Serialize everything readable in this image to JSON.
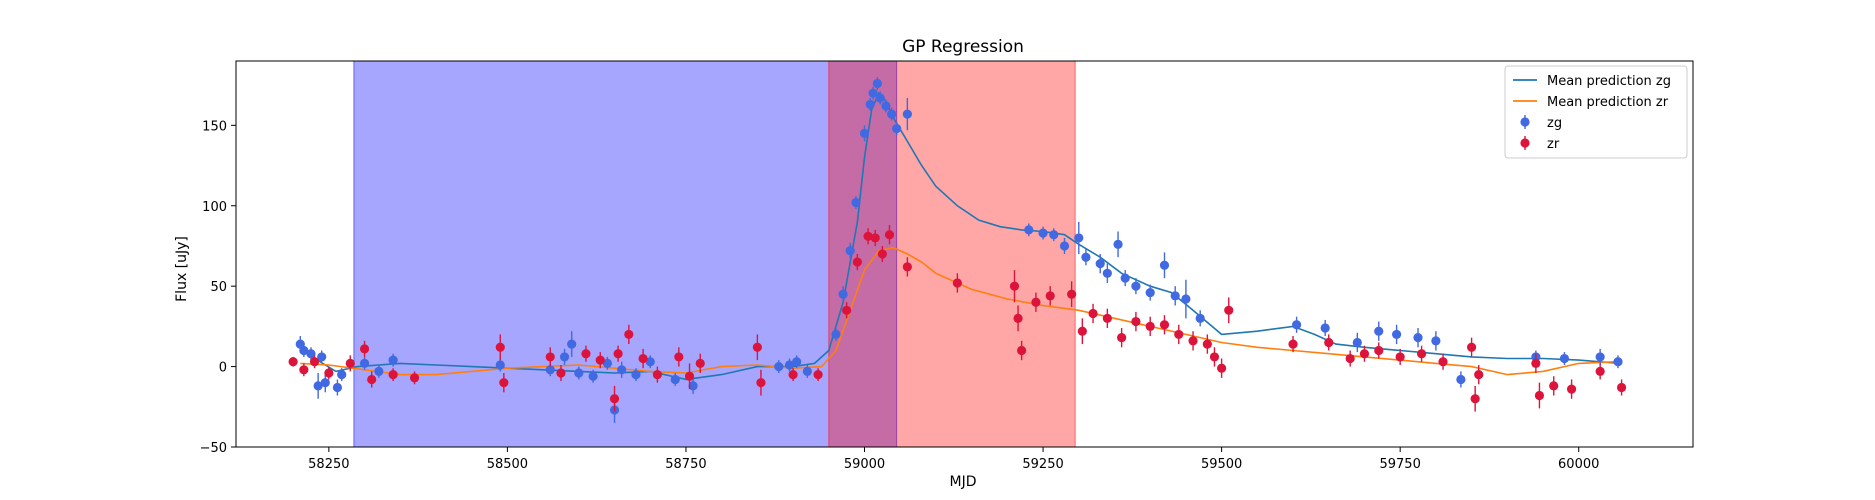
{
  "chart_data": {
    "type": "scatter",
    "title": "GP Regression",
    "xlabel": "MJD",
    "ylabel": "Flux [uJy]",
    "xlim": [
      58120,
      60160
    ],
    "ylim": [
      -50,
      190
    ],
    "xticks": [
      58250,
      58500,
      58750,
      59000,
      59250,
      59500,
      59750,
      60000
    ],
    "yticks": [
      -50,
      0,
      50,
      100,
      150
    ],
    "grid": false,
    "legend_position": "top-right",
    "shaded_regions": [
      {
        "x_start": 58285,
        "x_end": 59045,
        "color": "#0000ff",
        "opacity": 0.35
      },
      {
        "x_start": 58950,
        "x_end": 59295,
        "color": "#ff0000",
        "opacity": 0.35
      }
    ],
    "series": [
      {
        "name": "Mean prediction zg",
        "kind": "line",
        "color": "#1f77b4",
        "x": [
          58210,
          58230,
          58260,
          58290,
          58320,
          58350,
          58400,
          58450,
          58500,
          58550,
          58600,
          58650,
          58700,
          58750,
          58800,
          58850,
          58900,
          58930,
          58950,
          58970,
          58990,
          59000,
          59010,
          59020,
          59030,
          59040,
          59060,
          59080,
          59100,
          59130,
          59160,
          59190,
          59220,
          59250,
          59280,
          59300,
          59330,
          59360,
          59400,
          59430,
          59460,
          59500,
          59550,
          59600,
          59630,
          59660,
          59700,
          59750,
          59800,
          59850,
          59900,
          59950,
          60000,
          60030,
          60060
        ],
        "y": [
          12,
          5,
          -3,
          0,
          1,
          2,
          1,
          0,
          -1,
          -2,
          -3,
          -4,
          -3,
          -8,
          -5,
          0,
          0,
          2,
          10,
          40,
          90,
          130,
          160,
          170,
          165,
          155,
          140,
          125,
          112,
          100,
          91,
          87,
          85,
          84,
          82,
          76,
          68,
          58,
          50,
          46,
          35,
          20,
          22,
          25,
          20,
          14,
          12,
          10,
          8,
          6,
          5,
          5,
          4,
          3,
          2
        ]
      },
      {
        "name": "Mean prediction zr",
        "kind": "line",
        "color": "#ff7f0e",
        "x": [
          58210,
          58250,
          58300,
          58350,
          58400,
          58450,
          58500,
          58550,
          58600,
          58650,
          58700,
          58750,
          58800,
          58850,
          58900,
          58940,
          58960,
          58980,
          59000,
          59020,
          59040,
          59060,
          59080,
          59100,
          59150,
          59200,
          59250,
          59300,
          59350,
          59400,
          59450,
          59500,
          59550,
          59600,
          59650,
          59700,
          59750,
          59800,
          59850,
          59900,
          59950,
          60000,
          60050
        ],
        "y": [
          2,
          1,
          -2,
          -5,
          -5,
          -3,
          -1,
          0,
          1,
          -1,
          -3,
          -4,
          0,
          1,
          -1,
          0,
          10,
          35,
          60,
          72,
          74,
          70,
          65,
          58,
          48,
          42,
          38,
          35,
          30,
          25,
          20,
          15,
          12,
          10,
          8,
          6,
          4,
          2,
          0,
          -5,
          -3,
          2,
          3
        ]
      },
      {
        "name": "zg",
        "kind": "scatter_errorbar",
        "color": "#4169e1",
        "points": [
          {
            "x": 58210,
            "y": 14,
            "err": 5
          },
          {
            "x": 58215,
            "y": 10,
            "err": 4
          },
          {
            "x": 58225,
            "y": 8,
            "err": 4
          },
          {
            "x": 58235,
            "y": -12,
            "err": 8
          },
          {
            "x": 58240,
            "y": 6,
            "err": 4
          },
          {
            "x": 58245,
            "y": -10,
            "err": 6
          },
          {
            "x": 58262,
            "y": -13,
            "err": 5
          },
          {
            "x": 58268,
            "y": -5,
            "err": 4
          },
          {
            "x": 58300,
            "y": 2,
            "err": 4
          },
          {
            "x": 58320,
            "y": -3,
            "err": 4
          },
          {
            "x": 58340,
            "y": 4,
            "err": 4
          },
          {
            "x": 58490,
            "y": 1,
            "err": 4
          },
          {
            "x": 58560,
            "y": -2,
            "err": 4
          },
          {
            "x": 58580,
            "y": 6,
            "err": 5
          },
          {
            "x": 58590,
            "y": 14,
            "err": 8
          },
          {
            "x": 58600,
            "y": -4,
            "err": 4
          },
          {
            "x": 58620,
            "y": -6,
            "err": 4
          },
          {
            "x": 58640,
            "y": 2,
            "err": 4
          },
          {
            "x": 58650,
            "y": -27,
            "err": 8
          },
          {
            "x": 58660,
            "y": -2,
            "err": 5
          },
          {
            "x": 58680,
            "y": -5,
            "err": 4
          },
          {
            "x": 58700,
            "y": 3,
            "err": 4
          },
          {
            "x": 58735,
            "y": -8,
            "err": 4
          },
          {
            "x": 58760,
            "y": -12,
            "err": 5
          },
          {
            "x": 58880,
            "y": 0,
            "err": 4
          },
          {
            "x": 58895,
            "y": 1,
            "err": 4
          },
          {
            "x": 58905,
            "y": 3,
            "err": 4
          },
          {
            "x": 58920,
            "y": -3,
            "err": 4
          },
          {
            "x": 58960,
            "y": 20,
            "err": 4
          },
          {
            "x": 58970,
            "y": 45,
            "err": 5
          },
          {
            "x": 58980,
            "y": 72,
            "err": 5
          },
          {
            "x": 58988,
            "y": 102,
            "err": 4
          },
          {
            "x": 59000,
            "y": 145,
            "err": 5
          },
          {
            "x": 59008,
            "y": 163,
            "err": 4
          },
          {
            "x": 59012,
            "y": 170,
            "err": 4
          },
          {
            "x": 59018,
            "y": 176,
            "err": 4
          },
          {
            "x": 59022,
            "y": 167,
            "err": 4
          },
          {
            "x": 59030,
            "y": 162,
            "err": 4
          },
          {
            "x": 59038,
            "y": 157,
            "err": 4
          },
          {
            "x": 59045,
            "y": 148,
            "err": 4
          },
          {
            "x": 59060,
            "y": 157,
            "err": 10
          },
          {
            "x": 59230,
            "y": 85,
            "err": 4
          },
          {
            "x": 59250,
            "y": 83,
            "err": 4
          },
          {
            "x": 59265,
            "y": 82,
            "err": 4
          },
          {
            "x": 59280,
            "y": 75,
            "err": 5
          },
          {
            "x": 59300,
            "y": 80,
            "err": 10
          },
          {
            "x": 59310,
            "y": 68,
            "err": 5
          },
          {
            "x": 59330,
            "y": 64,
            "err": 6
          },
          {
            "x": 59340,
            "y": 58,
            "err": 6
          },
          {
            "x": 59355,
            "y": 76,
            "err": 8
          },
          {
            "x": 59365,
            "y": 55,
            "err": 5
          },
          {
            "x": 59380,
            "y": 50,
            "err": 5
          },
          {
            "x": 59400,
            "y": 46,
            "err": 5
          },
          {
            "x": 59420,
            "y": 63,
            "err": 8
          },
          {
            "x": 59435,
            "y": 44,
            "err": 6
          },
          {
            "x": 59450,
            "y": 42,
            "err": 12
          },
          {
            "x": 59470,
            "y": 30,
            "err": 5
          },
          {
            "x": 59605,
            "y": 26,
            "err": 5
          },
          {
            "x": 59645,
            "y": 24,
            "err": 5
          },
          {
            "x": 59690,
            "y": 15,
            "err": 6
          },
          {
            "x": 59720,
            "y": 22,
            "err": 6
          },
          {
            "x": 59745,
            "y": 20,
            "err": 6
          },
          {
            "x": 59775,
            "y": 18,
            "err": 6
          },
          {
            "x": 59800,
            "y": 16,
            "err": 6
          },
          {
            "x": 59835,
            "y": -8,
            "err": 5
          },
          {
            "x": 59940,
            "y": 6,
            "err": 4
          },
          {
            "x": 59980,
            "y": 5,
            "err": 4
          },
          {
            "x": 60030,
            "y": 6,
            "err": 5
          },
          {
            "x": 60055,
            "y": 3,
            "err": 4
          }
        ]
      },
      {
        "name": "zr",
        "kind": "scatter_errorbar",
        "color": "#dc143c",
        "points": [
          {
            "x": 58200,
            "y": 3,
            "err": 3
          },
          {
            "x": 58215,
            "y": -2,
            "err": 4
          },
          {
            "x": 58230,
            "y": 3,
            "err": 4
          },
          {
            "x": 58250,
            "y": -4,
            "err": 4
          },
          {
            "x": 58280,
            "y": 2,
            "err": 5
          },
          {
            "x": 58300,
            "y": 11,
            "err": 5
          },
          {
            "x": 58310,
            "y": -8,
            "err": 5
          },
          {
            "x": 58340,
            "y": -5,
            "err": 4
          },
          {
            "x": 58370,
            "y": -7,
            "err": 4
          },
          {
            "x": 58490,
            "y": 12,
            "err": 8
          },
          {
            "x": 58495,
            "y": -10,
            "err": 6
          },
          {
            "x": 58560,
            "y": 6,
            "err": 6
          },
          {
            "x": 58575,
            "y": -4,
            "err": 5
          },
          {
            "x": 58610,
            "y": 8,
            "err": 5
          },
          {
            "x": 58630,
            "y": 4,
            "err": 5
          },
          {
            "x": 58650,
            "y": -20,
            "err": 8
          },
          {
            "x": 58655,
            "y": 8,
            "err": 5
          },
          {
            "x": 58670,
            "y": 20,
            "err": 6
          },
          {
            "x": 58690,
            "y": 5,
            "err": 6
          },
          {
            "x": 58710,
            "y": -5,
            "err": 5
          },
          {
            "x": 58740,
            "y": 6,
            "err": 6
          },
          {
            "x": 58755,
            "y": -6,
            "err": 8
          },
          {
            "x": 58770,
            "y": 2,
            "err": 6
          },
          {
            "x": 58850,
            "y": 12,
            "err": 8
          },
          {
            "x": 58855,
            "y": -10,
            "err": 8
          },
          {
            "x": 58900,
            "y": -5,
            "err": 4
          },
          {
            "x": 58935,
            "y": -5,
            "err": 4
          },
          {
            "x": 58975,
            "y": 35,
            "err": 5
          },
          {
            "x": 58990,
            "y": 65,
            "err": 5
          },
          {
            "x": 59005,
            "y": 81,
            "err": 5
          },
          {
            "x": 59015,
            "y": 80,
            "err": 5
          },
          {
            "x": 59025,
            "y": 70,
            "err": 5
          },
          {
            "x": 59035,
            "y": 82,
            "err": 6
          },
          {
            "x": 59060,
            "y": 62,
            "err": 6
          },
          {
            "x": 59130,
            "y": 52,
            "err": 6
          },
          {
            "x": 59210,
            "y": 50,
            "err": 10
          },
          {
            "x": 59215,
            "y": 30,
            "err": 8
          },
          {
            "x": 59220,
            "y": 10,
            "err": 6
          },
          {
            "x": 59240,
            "y": 40,
            "err": 6
          },
          {
            "x": 59260,
            "y": 44,
            "err": 6
          },
          {
            "x": 59290,
            "y": 45,
            "err": 8
          },
          {
            "x": 59305,
            "y": 22,
            "err": 8
          },
          {
            "x": 59320,
            "y": 33,
            "err": 6
          },
          {
            "x": 59340,
            "y": 30,
            "err": 6
          },
          {
            "x": 59360,
            "y": 18,
            "err": 6
          },
          {
            "x": 59380,
            "y": 28,
            "err": 6
          },
          {
            "x": 59400,
            "y": 25,
            "err": 6
          },
          {
            "x": 59420,
            "y": 26,
            "err": 6
          },
          {
            "x": 59440,
            "y": 20,
            "err": 6
          },
          {
            "x": 59460,
            "y": 16,
            "err": 6
          },
          {
            "x": 59480,
            "y": 14,
            "err": 6
          },
          {
            "x": 59490,
            "y": 6,
            "err": 6
          },
          {
            "x": 59500,
            "y": -1,
            "err": 6
          },
          {
            "x": 59510,
            "y": 35,
            "err": 8
          },
          {
            "x": 59600,
            "y": 14,
            "err": 5
          },
          {
            "x": 59650,
            "y": 15,
            "err": 5
          },
          {
            "x": 59680,
            "y": 5,
            "err": 5
          },
          {
            "x": 59700,
            "y": 8,
            "err": 5
          },
          {
            "x": 59720,
            "y": 10,
            "err": 5
          },
          {
            "x": 59750,
            "y": 6,
            "err": 5
          },
          {
            "x": 59780,
            "y": 8,
            "err": 5
          },
          {
            "x": 59810,
            "y": 3,
            "err": 5
          },
          {
            "x": 59850,
            "y": 12,
            "err": 6
          },
          {
            "x": 59855,
            "y": -20,
            "err": 8
          },
          {
            "x": 59860,
            "y": -5,
            "err": 6
          },
          {
            "x": 59940,
            "y": 2,
            "err": 6
          },
          {
            "x": 59945,
            "y": -18,
            "err": 8
          },
          {
            "x": 59965,
            "y": -12,
            "err": 6
          },
          {
            "x": 59990,
            "y": -14,
            "err": 6
          },
          {
            "x": 60030,
            "y": -3,
            "err": 5
          },
          {
            "x": 60060,
            "y": -13,
            "err": 5
          }
        ]
      }
    ]
  }
}
